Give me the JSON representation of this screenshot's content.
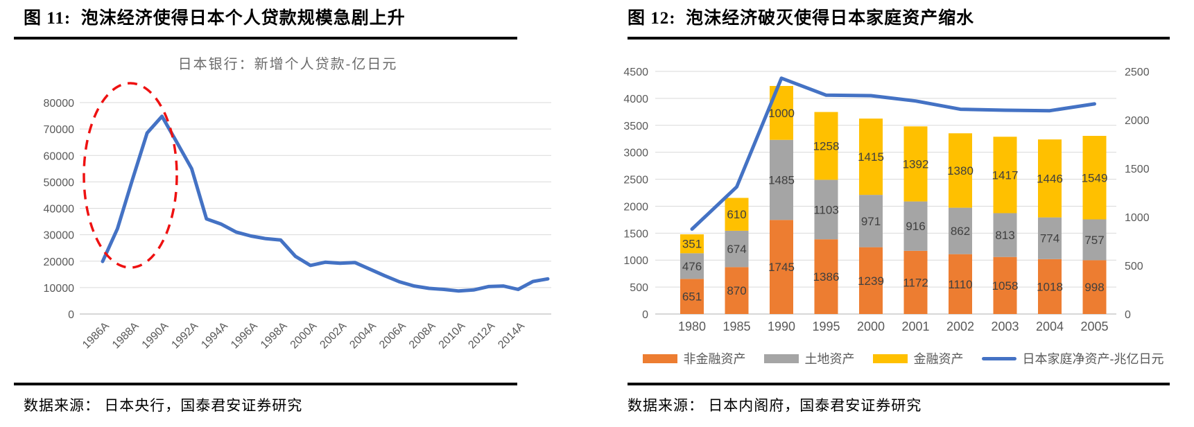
{
  "figures": [
    {
      "title": "图 11:  泡沫经济使得日本个人贷款规模急剧上升",
      "source": "数据来源： 日本央行，国泰君安证券研究"
    },
    {
      "title": "图 12:  泡沫经济破灭使得日本家庭资产缩水",
      "source": "数据来源： 日本内阁府，国泰君安证券研究"
    }
  ],
  "chart_data": [
    {
      "type": "line",
      "title": "日本银行：新增个人贷款-亿日元",
      "x": [
        1986,
        1987,
        1988,
        1989,
        1990,
        1991,
        1992,
        1993,
        1994,
        1995,
        1996,
        1997,
        1998,
        1999,
        2000,
        2001,
        2002,
        2003,
        2004,
        2005,
        2006,
        2007,
        2008,
        2009,
        2010,
        2011,
        2012,
        2013,
        2014,
        2015,
        2016
      ],
      "values": [
        19900,
        32300,
        50700,
        68500,
        74800,
        65000,
        55000,
        36000,
        34000,
        31000,
        29500,
        28500,
        28000,
        21800,
        18400,
        19600,
        19200,
        19500,
        17000,
        14500,
        12200,
        10600,
        9700,
        9300,
        8700,
        9100,
        10400,
        10600,
        9300,
        12300,
        13300
      ],
      "x_tick_labels": [
        "1986A",
        "1988A",
        "1990A",
        "1992A",
        "1994A",
        "1996A",
        "1998A",
        "2000A",
        "2002A",
        "2004A",
        "2006A",
        "2008A",
        "2010A",
        "2012A",
        "2014A"
      ],
      "ylim": [
        0,
        80000
      ],
      "y_tick_step": 10000,
      "grid": true,
      "line_color": "#4472C4",
      "annotation": {
        "shape": "dashed-ellipse",
        "color": "#EE1111",
        "highlights": "1986-1991 surge"
      }
    },
    {
      "type": "bar-line-combo",
      "categories": [
        "1980",
        "1985",
        "1990",
        "1995",
        "2000",
        "2001",
        "2002",
        "2003",
        "2004",
        "2005"
      ],
      "series": [
        {
          "name": "非金融资产",
          "type": "bar",
          "color": "#ED7D31",
          "axis": "left",
          "values": [
            651,
            870,
            1745,
            1386,
            1239,
            1172,
            1110,
            1058,
            1018,
            998
          ]
        },
        {
          "name": "土地资产",
          "type": "bar",
          "color": "#A5A5A5",
          "axis": "left",
          "values": [
            476,
            674,
            1485,
            1103,
            971,
            916,
            862,
            813,
            774,
            757
          ]
        },
        {
          "name": "金融资产",
          "type": "bar",
          "color": "#FFC000",
          "axis": "left",
          "values": [
            351,
            610,
            1000,
            1258,
            1415,
            1392,
            1380,
            1417,
            1446,
            1549
          ]
        },
        {
          "name": "日本家庭净资产-兆亿日元",
          "type": "line",
          "color": "#4472C4",
          "axis": "right",
          "values": [
            875,
            1310,
            2430,
            2255,
            2250,
            2195,
            2110,
            2100,
            2095,
            2165
          ]
        }
      ],
      "left_axis": {
        "lim": [
          0,
          4500
        ],
        "tick_step": 500
      },
      "right_axis": {
        "lim": [
          0,
          2500
        ],
        "tick_step": 500
      },
      "stacked": true,
      "grid": true,
      "data_labels": true,
      "legend_position": "bottom"
    }
  ],
  "style": {
    "grid_color": "#D9D9D9",
    "axis_line_color": "#BFBFBF",
    "tick_label_color": "#595959",
    "bar_label_color": "#3F3F3F"
  }
}
